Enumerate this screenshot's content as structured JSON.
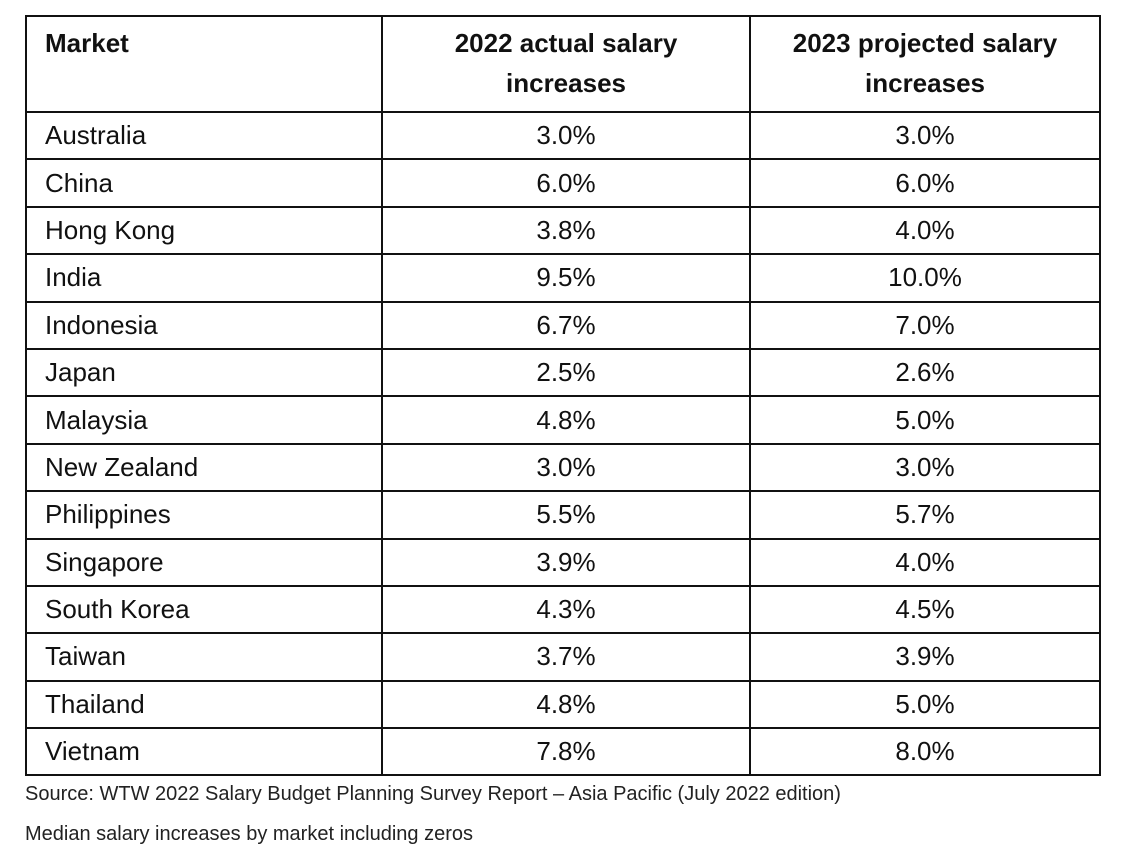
{
  "chart_data": {
    "type": "table",
    "columns": [
      "Market",
      "2022 actual salary increases",
      "2023 projected salary increases"
    ],
    "rows": [
      [
        "Australia",
        "3.0%",
        "3.0%"
      ],
      [
        "China",
        "6.0%",
        "6.0%"
      ],
      [
        "Hong Kong",
        "3.8%",
        "4.0%"
      ],
      [
        "India",
        "9.5%",
        "10.0%"
      ],
      [
        "Indonesia",
        "6.7%",
        "7.0%"
      ],
      [
        "Japan",
        "2.5%",
        "2.6%"
      ],
      [
        "Malaysia",
        "4.8%",
        "5.0%"
      ],
      [
        "New Zealand",
        "3.0%",
        "3.0%"
      ],
      [
        "Philippines",
        "5.5%",
        "5.7%"
      ],
      [
        "Singapore",
        "3.9%",
        "4.0%"
      ],
      [
        "South Korea",
        "4.3%",
        "4.5%"
      ],
      [
        "Taiwan",
        "3.7%",
        "3.9%"
      ],
      [
        "Thailand",
        "4.8%",
        "5.0%"
      ],
      [
        "Vietnam",
        "7.8%",
        "8.0%"
      ]
    ]
  },
  "source": "Source: WTW 2022 Salary Budget Planning Survey Report – Asia Pacific (July 2022 edition)",
  "caption": "Median salary increases by market including zeros"
}
